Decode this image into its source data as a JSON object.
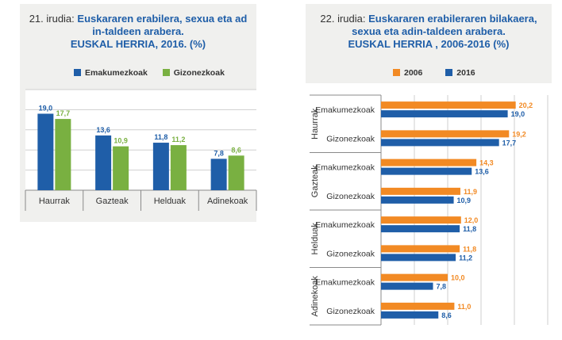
{
  "chart_data": [
    {
      "type": "bar",
      "title_number": "21. irudia:",
      "title": "Euskararen erabilera, sexua eta adin-taldeen arabera.",
      "subtitle": "EUSKAL HERRIA, 2016. (%)",
      "categories": [
        "Haurrak",
        "Gazteak",
        "Helduak",
        "Adinekoak"
      ],
      "series": [
        {
          "name": "Emakumezkoak",
          "values": [
            19.0,
            13.6,
            11.8,
            7.8
          ],
          "labels": [
            "19,0",
            "13,6",
            "11,8",
            "7,8"
          ],
          "color": "#1f5ea8"
        },
        {
          "name": "Gizonezkoak",
          "values": [
            17.7,
            10.9,
            11.2,
            8.6
          ],
          "labels": [
            "17,7",
            "10,9",
            "11,2",
            "8,6"
          ],
          "color": "#79b041"
        }
      ],
      "ylim": [
        0,
        25
      ],
      "grid": true,
      "legend_position": "top"
    },
    {
      "type": "bar",
      "orientation": "horizontal",
      "title_number": "22. irudia:",
      "title": "Euskararen erabileraren bilakaera, sexua eta adin-taldeen arabera.",
      "subtitle": "EUSKAL HERRIA , 2006-2016 (%)",
      "groups": [
        "Haurrak",
        "Gazteak",
        "Helduak",
        "Adinekoak"
      ],
      "subcategories": [
        "Emakumezkoak",
        "Gizonezkoak"
      ],
      "series": [
        {
          "name": "2006",
          "color": "#f28a24",
          "values": [
            [
              20.2,
              19.2
            ],
            [
              14.3,
              11.9
            ],
            [
              12.0,
              11.8
            ],
            [
              10.0,
              11.0
            ]
          ],
          "labels": [
            [
              "20,2",
              "19,2"
            ],
            [
              "14,3",
              "11,9"
            ],
            [
              "12,0",
              "11,8"
            ],
            [
              "10,0",
              "11,0"
            ]
          ]
        },
        {
          "name": "2016",
          "color": "#1f5ea8",
          "values": [
            [
              19.0,
              17.7
            ],
            [
              13.6,
              10.9
            ],
            [
              11.8,
              11.2
            ],
            [
              7.8,
              8.6
            ]
          ],
          "labels": [
            [
              "19,0",
              "17,7"
            ],
            [
              "13,6",
              "10,9"
            ],
            [
              "11,8",
              "11,2"
            ],
            [
              "7,8",
              "8,6"
            ]
          ]
        }
      ],
      "xlim": [
        0,
        25
      ],
      "grid": true,
      "legend_position": "top"
    }
  ]
}
